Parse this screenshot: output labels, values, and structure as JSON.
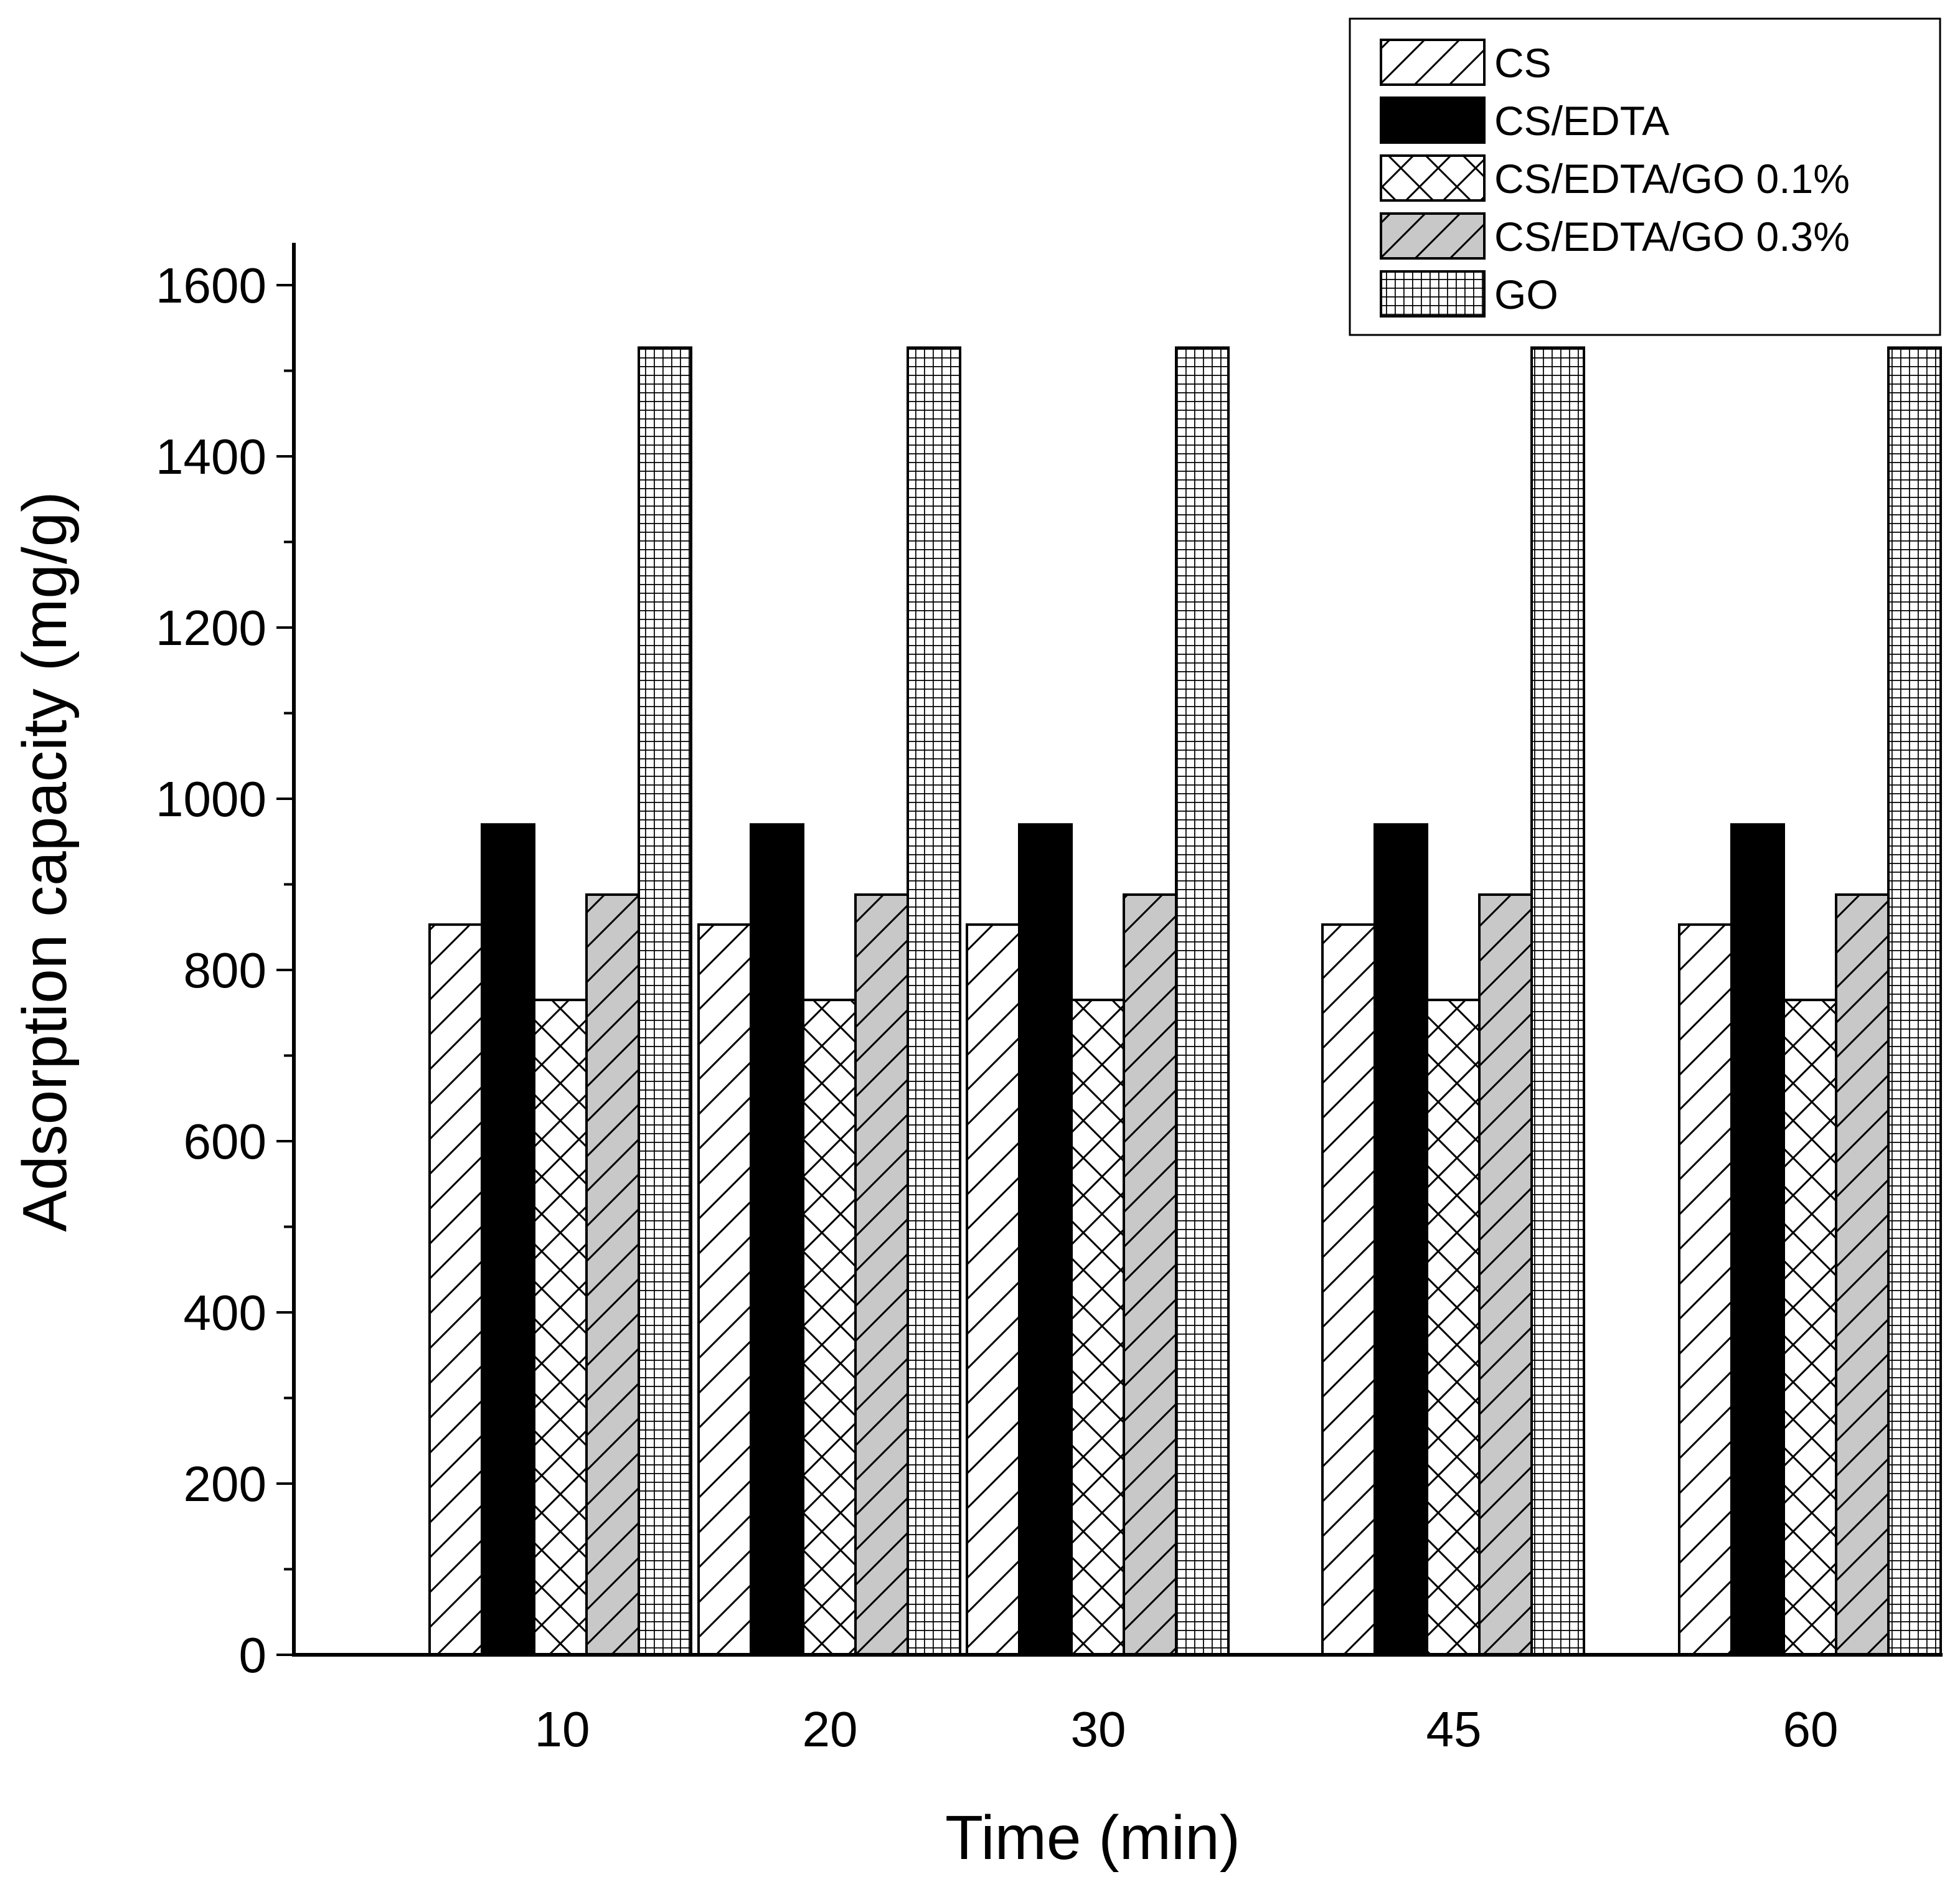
{
  "chart_data": {
    "type": "bar",
    "title": "",
    "xlabel": "Time (min)",
    "ylabel": "Adsorption capacity (mg/g)",
    "categories": [
      "10",
      "20",
      "30",
      "45",
      "60"
    ],
    "ylim": [
      0,
      1600
    ],
    "yticks": [
      "0",
      "200",
      "400",
      "600",
      "800",
      "1000",
      "1200",
      "1400",
      "1600"
    ],
    "y_minor_step": 100,
    "grid": false,
    "legend_position": "top-right",
    "series": [
      {
        "name": "CS",
        "values": [
          853,
          853,
          853,
          853,
          853
        ],
        "pattern": "hatch-diag",
        "fill": "#ffffff"
      },
      {
        "name": "CS/EDTA",
        "values": [
          970,
          970,
          970,
          970,
          970
        ],
        "pattern": "solid",
        "fill": "#000000"
      },
      {
        "name": "CS/EDTA/GO 0.1%",
        "values": [
          765,
          765,
          765,
          765,
          765
        ],
        "pattern": "crosshatch",
        "fill": "#ffffff"
      },
      {
        "name": "CS/EDTA/GO 0.3%",
        "values": [
          888,
          888,
          888,
          888,
          888
        ],
        "pattern": "hatch-diag",
        "fill": "#c8c8c8"
      },
      {
        "name": "GO",
        "values": [
          1527,
          1527,
          1527,
          1527,
          1527
        ],
        "pattern": "grid",
        "fill": "#ffffff"
      }
    ]
  }
}
